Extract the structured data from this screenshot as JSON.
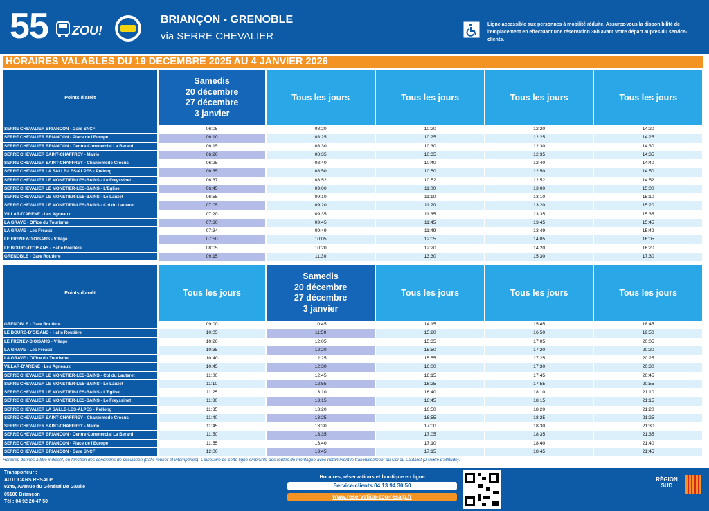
{
  "header": {
    "line_number": "55",
    "brand": "ZOU!",
    "title": "BRIANÇON - GRENOBLE",
    "subtitle": "via SERRE CHEVALIER",
    "accessibility": "Ligne accessible aux personnes à mobilité réduite. Assurez-vous la disponibilité de l'emplacement en effectuant une réservation 36h avant votre départ auprès du service-clients."
  },
  "banner": "HORAIRES VALABLES DU 19 DECEMBRE 2025 AU 4 JANVIER 2026",
  "tables": [
    {
      "stop_header": "Points d'arrêt",
      "columns": [
        "Samedis\n20 décembre\n27 décembre\n3 janvier",
        "Tous les jours",
        "Tous les jours",
        "Tous les jours",
        "Tous les jours"
      ],
      "rows": [
        {
          "stop": "SERRE CHEVALIER BRIANCON - Gare SNCF",
          "times": [
            "06:05",
            "08:20",
            "10:20",
            "12:20",
            "14:20"
          ]
        },
        {
          "stop": "SERRE CHEVALIER BRIANCON - Place de l'Europe",
          "times": [
            "06:10",
            "08:25",
            "10:25",
            "12:25",
            "14:25"
          ]
        },
        {
          "stop": "SERRE CHEVALIER BRIANCON - Centre Commercial La Berard",
          "times": [
            "06:15",
            "08:30",
            "10:30",
            "12:30",
            "14:30"
          ]
        },
        {
          "stop": "SERRE CHEVALIER SAINT-CHAFFREY - Mairie",
          "times": [
            "06:20",
            "08:35",
            "10:35",
            "12:35",
            "14:35"
          ]
        },
        {
          "stop": "SERRE CHEVALIER SAINT-CHAFFREY - Chantemerle Crocus",
          "times": [
            "06:25",
            "08:40",
            "10:40",
            "12:40",
            "14:40"
          ]
        },
        {
          "stop": "SERRE CHEVALIER LA SALLE-LES-ALPES - Prélong",
          "times": [
            "06:35",
            "08:50",
            "10:50",
            "12:50",
            "14:50"
          ]
        },
        {
          "stop": "SERRE CHEVALIER LE MONETIER-LES-BAINS - Le Freyssinet",
          "times": [
            "06:37",
            "08:52",
            "10:52",
            "12:52",
            "14:52"
          ]
        },
        {
          "stop": "SERRE CHEVALIER LE MONETIER-LES-BAINS - L'Eglise",
          "times": [
            "06:45",
            "09:00",
            "11:00",
            "13:00",
            "15:00"
          ]
        },
        {
          "stop": "SERRE CHEVALIER LE MONETIER-LES-BAINS - Le Lauzet",
          "times": [
            "06:55",
            "09:10",
            "11:10",
            "13:10",
            "15:10"
          ]
        },
        {
          "stop": "SERRE CHEVALIER LE MONETIER-LES-BAINS - Col du Lautaret",
          "times": [
            "07:05",
            "09:20",
            "11:20",
            "13:20",
            "15:20"
          ]
        },
        {
          "stop": "VILLAR-D'ARENE - Les Agneaux",
          "times": [
            "07:20",
            "09:35",
            "11:35",
            "13:35",
            "15:35"
          ]
        },
        {
          "stop": "LA GRAVE - Office du Tourisme",
          "times": [
            "07:30",
            "09:45",
            "11:45",
            "13:45",
            "15:45"
          ]
        },
        {
          "stop": "LA GRAVE - Les Fréaux",
          "times": [
            "07:34",
            "09:49",
            "11:49",
            "13:49",
            "15:49"
          ]
        },
        {
          "stop": "LE FRENEY-D'OISANS - Village",
          "times": [
            "07:50",
            "10:05",
            "12:05",
            "14:05",
            "16:05"
          ]
        },
        {
          "stop": "LE BOURG-D'OISANS - Halte Routière",
          "times": [
            "08:05",
            "10:20",
            "12:20",
            "14:20",
            "16:20"
          ]
        },
        {
          "stop": "GRENOBLE - Gare Routière",
          "times": [
            "09:15",
            "11:30",
            "13:30",
            "15:30",
            "17:30"
          ]
        }
      ]
    },
    {
      "stop_header": "Points d'arrêt",
      "columns": [
        "Tous les jours",
        "Samedis\n20 décembre\n27 décembre\n3 janvier",
        "Tous les jours",
        "Tous les jours",
        "Tous les jours"
      ],
      "rows": [
        {
          "stop": "GRENOBLE - Gare Routière",
          "times": [
            "09:00",
            "10:45",
            "14:15",
            "15:45",
            "18:45"
          ]
        },
        {
          "stop": "LE BOURG-D'OISANS - Halte Routière",
          "times": [
            "10:05",
            "11:50",
            "15:20",
            "16:50",
            "19:50"
          ]
        },
        {
          "stop": "LE FRENEY-D'OISANS - Village",
          "times": [
            "10:20",
            "12:05",
            "15:35",
            "17:05",
            "20:05"
          ]
        },
        {
          "stop": "LA GRAVE - Les Fréaux",
          "times": [
            "10:35",
            "12:20",
            "15:50",
            "17:20",
            "20:20"
          ]
        },
        {
          "stop": "LA GRAVE - Office du Tourisme",
          "times": [
            "10:40",
            "12:25",
            "15:55",
            "17:25",
            "20:25"
          ]
        },
        {
          "stop": "VILLAR-D'ARENE - Les Agneaux",
          "times": [
            "10:45",
            "12:30",
            "16:00",
            "17:30",
            "20:30"
          ]
        },
        {
          "stop": "SERRE CHEVALIER LE MONETIER-LES-BAINS - Col du Lautaret",
          "times": [
            "11:00",
            "12:45",
            "16:15",
            "17:45",
            "20:45"
          ]
        },
        {
          "stop": "SERRE CHEVALIER LE MONETIER-LES-BAINS - Le Lauzet",
          "times": [
            "11:10",
            "12:55",
            "16:25",
            "17:55",
            "20:55"
          ]
        },
        {
          "stop": "SERRE CHEVALIER LE MONETIER-LES-BAINS - L'Eglise",
          "times": [
            "11:25",
            "13:10",
            "16:40",
            "18:10",
            "21:10"
          ]
        },
        {
          "stop": "SERRE CHEVALIER LE MONETIER-LES-BAINS - Le Freyssinet",
          "times": [
            "11:30",
            "13:15",
            "16:45",
            "18:15",
            "21:15"
          ]
        },
        {
          "stop": "SERRE CHEVALIER LA SALLE-LES-ALPES - Prélong",
          "times": [
            "11:35",
            "13:20",
            "16:50",
            "18:20",
            "21:20"
          ]
        },
        {
          "stop": "SERRE CHEVALIER SAINT-CHAFFREY - Chantemerle Crocus",
          "times": [
            "11:40",
            "13:25",
            "16:55",
            "18:25",
            "21:25"
          ]
        },
        {
          "stop": "SERRE CHEVALIER SAINT-CHAFFREY - Mairie",
          "times": [
            "11:45",
            "13:30",
            "17:00",
            "18:30",
            "21:30"
          ]
        },
        {
          "stop": "SERRE CHEVALIER BRIANCON - Centre Commercial La Berard",
          "times": [
            "11:50",
            "13:35",
            "17:05",
            "18:35",
            "21:35"
          ]
        },
        {
          "stop": "SERRE CHEVALIER BRIANCON - Place de l'Europe",
          "times": [
            "11:55",
            "13:40",
            "17:10",
            "18:40",
            "21:40"
          ]
        },
        {
          "stop": "SERRE CHEVALIER BRIANCON - Gare SNCF",
          "times": [
            "12:00",
            "13:45",
            "17:15",
            "18:45",
            "21:45"
          ]
        }
      ]
    }
  ],
  "footnote": "Horaires donnés à titre indicatif, en fonction des conditions de circulation (trafic routier et intempéries). L'itinéraire de cette ligne emprunte des routes de montagne avec notamment le franchissement du Col du Lautaret (2 058m d'altitude).",
  "footer": {
    "carrier_label": "Transporteur :",
    "carrier_name": "AUTOCARS RESALP",
    "address": "9245, Avenue du Général De Gaulle",
    "city": "05100 Briançon",
    "phone": "Tél : 04 92 20 47 50",
    "online": "Horaires, réservations et boutique en ligne",
    "service": "Service-clients 04 13 94 30 50",
    "website": "www.reservation-zou-resalp.fr",
    "region": "RÉGION\nSUD"
  }
}
